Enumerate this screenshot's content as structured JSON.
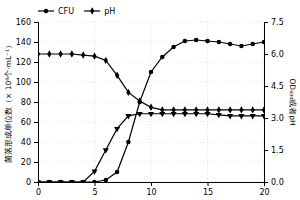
{
  "chart_data": {
    "type": "line",
    "x": [
      0,
      1,
      2,
      3,
      4,
      5,
      6,
      7,
      8,
      9,
      10,
      11,
      12,
      13,
      14,
      15,
      16,
      17,
      18,
      19,
      20
    ],
    "series": [
      {
        "name": "CFU",
        "color": "black",
        "marker": "circle",
        "axis": "y",
        "values": [
          0,
          0,
          0,
          0,
          0,
          0,
          2,
          10,
          40,
          80,
          110,
          125,
          135,
          141,
          142,
          141,
          140,
          138,
          136,
          138,
          140
        ]
      },
      {
        "color": "black",
        "marker": "triangle-down",
        "axis": "y2",
        "values": [
          0,
          0,
          0,
          0,
          0,
          0.5,
          1.5,
          2.5,
          3.1,
          3.2,
          3.2,
          3.2,
          3.2,
          3.2,
          3.2,
          3.2,
          3.15,
          3.1,
          3.1,
          3.1,
          3.1
        ]
      },
      {
        "name": "pH",
        "color": "black",
        "marker": "diamond",
        "axis": "y2",
        "values": [
          6.0,
          6.0,
          6.0,
          6.0,
          5.95,
          5.9,
          5.7,
          5.0,
          4.2,
          3.8,
          3.5,
          3.38,
          3.38,
          3.38,
          3.38,
          3.38,
          3.38,
          3.38,
          3.38,
          3.38,
          3.38
        ]
      }
    ],
    "y_label": "菌落形成单位数（× 10⁸个·mL⁻¹）",
    "y2_label": "OD₆₀₀或者pH",
    "xlim": [
      0,
      20
    ],
    "xticks": [
      0,
      5,
      10,
      15,
      20
    ],
    "ylim": [
      0,
      160
    ],
    "yticks": [
      0,
      20,
      40,
      60,
      80,
      100,
      120,
      140,
      160
    ],
    "y2lim": [
      0,
      7.5
    ],
    "y2ticks": [
      {
        "value": 0,
        "label": "0.0"
      },
      1.5,
      {
        "value": 3,
        "label": "3.0"
      },
      4.5,
      {
        "value": 6,
        "label": "6.0"
      },
      7.5
    ],
    "grid": true,
    "legend": "upper left"
  }
}
